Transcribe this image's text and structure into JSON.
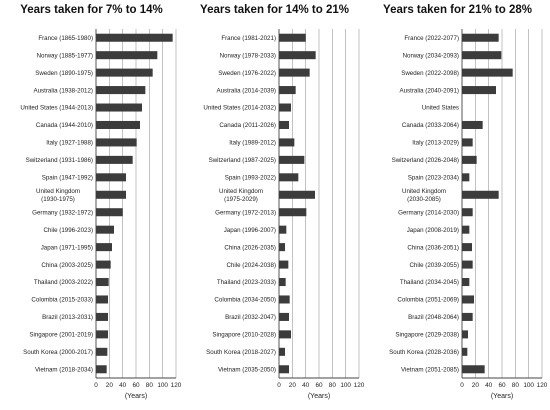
{
  "chart_data": [
    {
      "type": "bar",
      "orientation": "horizontal",
      "title": "Years taken for 7% to 14%",
      "xlabel": "(Years)",
      "xlim": [
        0,
        120
      ],
      "xticks": [
        "0",
        "20",
        "40",
        "60",
        "80",
        "100",
        "120"
      ],
      "grid": true,
      "categories": [
        "France (1865-1980)",
        "Norway (1885-1977)",
        "Sweden (1890-1975)",
        "Australia (1938-2012)",
        "United States (1944-2013)",
        "Canada (1944-2010)",
        "Italy (1927-1988)",
        "Switzerland (1931-1986)",
        "Spain (1947-1992)",
        [
          "United Kingdom",
          "(1930-1975)"
        ],
        "Germany (1932-1972)",
        "Chile (1996-2023)",
        "Japan (1971-1995)",
        "China (2003-2025)",
        "Thailand (2003-2022)",
        "Colombia (2015-2033)",
        "Brazil (2013-2031)",
        "Singapore (2001-2019)",
        "South Korea (2000-2017)",
        "Vietnam (2018-2034)"
      ],
      "values": [
        115,
        92,
        85,
        74,
        69,
        66,
        61,
        55,
        45,
        45,
        40,
        27,
        24,
        22,
        19,
        18,
        18,
        18,
        17,
        16
      ]
    },
    {
      "type": "bar",
      "orientation": "horizontal",
      "title": "Years taken for 14% to 21%",
      "xlabel": "(Years)",
      "xlim": [
        0,
        120
      ],
      "xticks": [
        "0",
        "20",
        "40",
        "60",
        "80",
        "100",
        "120"
      ],
      "grid": true,
      "categories": [
        "France (1981-2021)",
        "Norway (1978-2033)",
        "Sweden (1976-2022)",
        "Australia (2014-2039)",
        "United States (2014-2032)",
        "Canada (2011-2026)",
        "Italy (1989-2012)",
        "Switzerland (1987-2025)",
        "Spain (1993-2022)",
        [
          "United Kingdom",
          "(1975-2029)"
        ],
        "Germany (1972-2013)",
        "Japan (1996-2007)",
        "China (2026-2035)",
        "Chile (2024-2038)",
        "Thailand (2023-2033)",
        "Colombia (2034-2050)",
        "Brazil (2032-2047)",
        "Singapore (2010-2028)",
        "South Korea (2018-2027)",
        "Vietnam (2035-2050)"
      ],
      "values": [
        40,
        55,
        46,
        25,
        18,
        15,
        23,
        38,
        29,
        54,
        41,
        11,
        9,
        14,
        10,
        16,
        15,
        18,
        9,
        15
      ]
    },
    {
      "type": "bar",
      "orientation": "horizontal",
      "title": "Years taken for 21% to 28%",
      "xlabel": "(Years)",
      "xlim": [
        0,
        120
      ],
      "xticks": [
        "0",
        "20",
        "40",
        "60",
        "80",
        "100",
        "120"
      ],
      "grid": true,
      "categories": [
        "France (2022-2077)",
        "Norway (2034-2093)",
        "Sweden (2022-2098)",
        "Australia (2040-2091)",
        "United States",
        "Canada (2033-2064)",
        "Italy (2013-2029)",
        "Switzerland (2026-2048)",
        "Spain (2023-2034)",
        [
          "United Kingdom",
          "(2030-2085)"
        ],
        "Germany (2014-2030)",
        "Japan (2008-2019)",
        "China (2036-2051)",
        "Chile (2039-2055)",
        "Thailand (2034-2045)",
        "Colombia (2051-2069)",
        "Brazil (2048-2064)",
        "Singapore (2029-2038)",
        "South Korea (2028-2036)",
        "Vietnam (2051-2085)"
      ],
      "values": [
        55,
        59,
        76,
        51,
        null,
        31,
        16,
        22,
        11,
        55,
        16,
        11,
        15,
        16,
        11,
        18,
        16,
        9,
        8,
        34
      ]
    }
  ],
  "colors": {
    "bar": "#3c3c3c",
    "grid": "#9a9a9a",
    "axis": "#444444"
  }
}
